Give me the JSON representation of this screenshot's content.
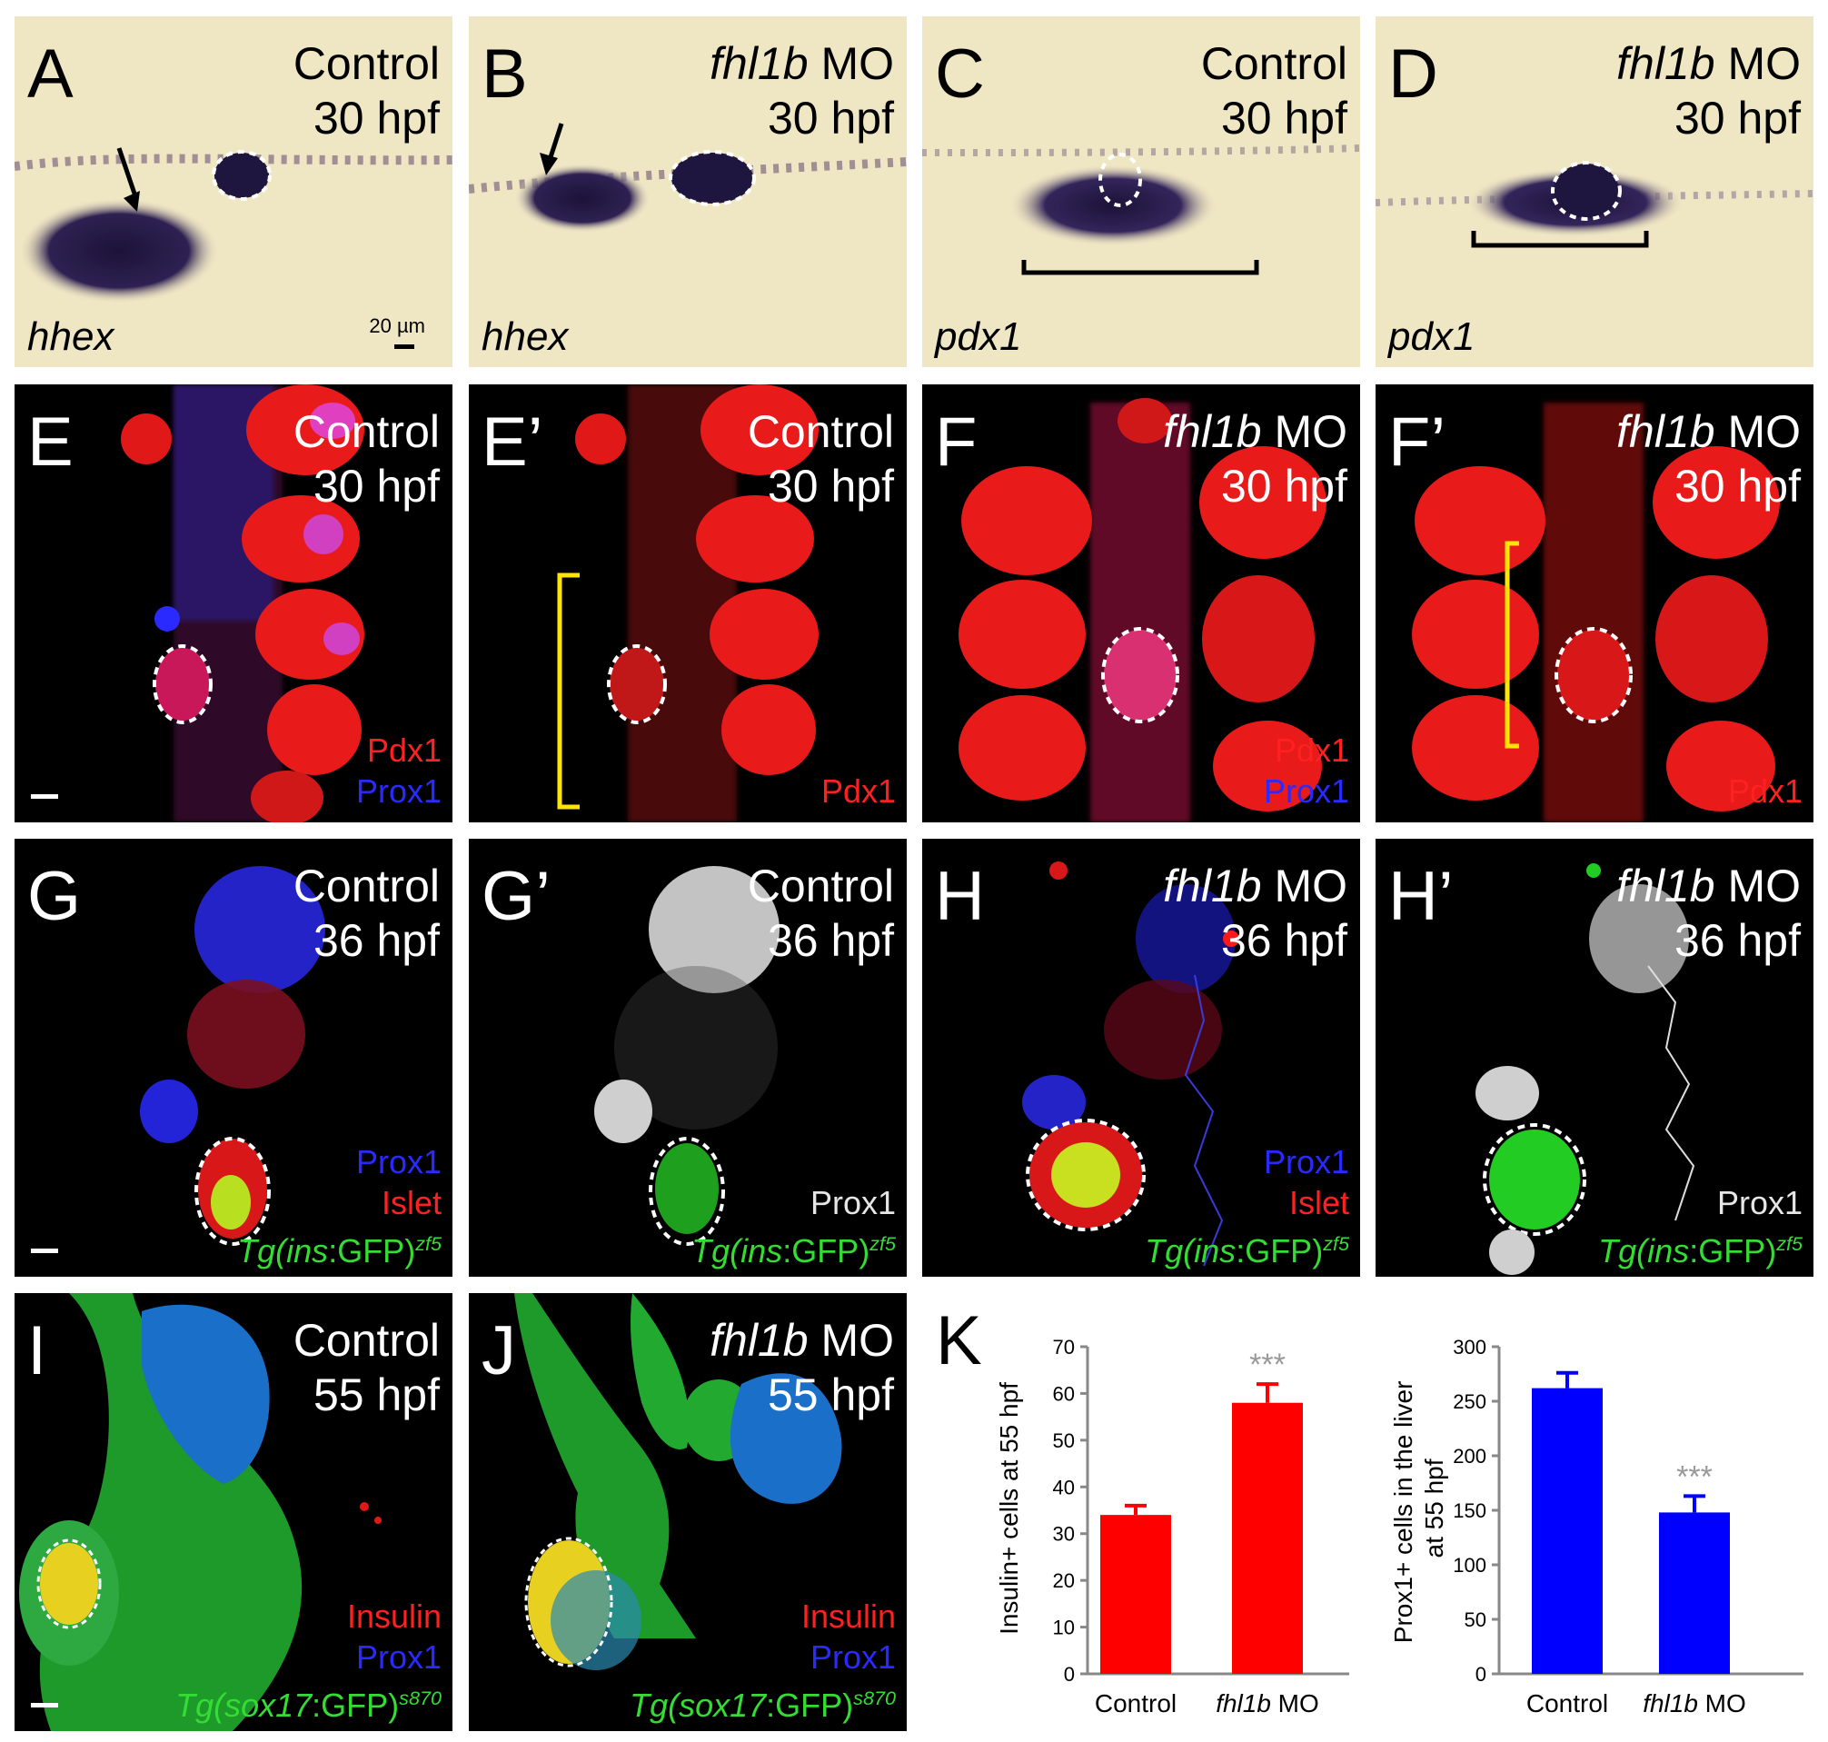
{
  "panels": {
    "A": {
      "letter": "A",
      "cond1": "Control",
      "cond2": "30 hpf",
      "gene": "hhex",
      "scale": "20 µm"
    },
    "B": {
      "letter": "B",
      "cond1_italic": "fhl1b",
      "cond1_rest": " MO",
      "cond2": "30 hpf",
      "gene": "hhex"
    },
    "C": {
      "letter": "C",
      "cond1": "Control",
      "cond2": "30 hpf",
      "gene": "pdx1"
    },
    "D": {
      "letter": "D",
      "cond1_italic": "fhl1b",
      "cond1_rest": " MO",
      "cond2": "30 hpf",
      "gene": "pdx1"
    },
    "E": {
      "letter": "E",
      "cond1": "Control",
      "cond2": "30 hpf",
      "stain1": "Pdx1",
      "stain2": "Prox1"
    },
    "E2": {
      "letter": "E’",
      "cond1": "Control",
      "cond2": "30 hpf",
      "stain1": "Pdx1"
    },
    "F": {
      "letter": "F",
      "cond1_italic": "fhl1b",
      "cond1_rest": " MO",
      "cond2": "30 hpf",
      "stain1": "Pdx1",
      "stain2": "Prox1"
    },
    "F2": {
      "letter": "F’",
      "cond1_italic": "fhl1b",
      "cond1_rest": " MO",
      "cond2": "30 hpf",
      "stain1": "Pdx1"
    },
    "G": {
      "letter": "G",
      "cond1": "Control",
      "cond2": "36 hpf",
      "stain1": "Prox1",
      "stain2": "Islet",
      "tg_pre": "Tg(ins",
      "tg_mid": ":GFP)",
      "tg_sup": "zf5"
    },
    "G2": {
      "letter": "G’",
      "cond1": "Control",
      "cond2": "36 hpf",
      "stain1": "Prox1",
      "tg_pre": "Tg(ins",
      "tg_mid": ":GFP)",
      "tg_sup": "zf5"
    },
    "H": {
      "letter": "H",
      "cond1_italic": "fhl1b",
      "cond1_rest": " MO",
      "cond2": "36 hpf",
      "stain1": "Prox1",
      "stain2": "Islet",
      "tg_pre": "Tg(ins",
      "tg_mid": ":GFP)",
      "tg_sup": "zf5"
    },
    "H2": {
      "letter": "H’",
      "cond1_italic": "fhl1b",
      "cond1_rest": " MO",
      "cond2": "36 hpf",
      "stain1": "Prox1",
      "tg_pre": "Tg(ins",
      "tg_mid": ":GFP)",
      "tg_sup": "zf5"
    },
    "I": {
      "letter": "I",
      "cond1": "Control",
      "cond2": "55 hpf",
      "stain1": "Insulin",
      "stain2": "Prox1",
      "tg_pre": "Tg(sox17",
      "tg_mid": ":GFP)",
      "tg_sup": "s870"
    },
    "J": {
      "letter": "J",
      "cond1_italic": "fhl1b",
      "cond1_rest": " MO",
      "cond2": "55 hpf",
      "stain1": "Insulin",
      "stain2": "Prox1",
      "tg_pre": "Tg(sox17",
      "tg_mid": ":GFP)",
      "tg_sup": "s870"
    },
    "K": {
      "letter": "K"
    }
  },
  "colors": {
    "ish_bg": "#efe6c4",
    "ish_stain": "#25183f",
    "pdx1": "#ff1a1a",
    "prox1": "#2b2bff",
    "gfp": "#22dd22",
    "bar_left": "#ff0000",
    "bar_right": "#0000ff",
    "bracket_yellow": "#ffe600",
    "sig": "#999999"
  },
  "chart_data": [
    {
      "type": "bar",
      "categories": [
        "Control",
        "fhl1b MO"
      ],
      "values": [
        34,
        58
      ],
      "errors": [
        2,
        4
      ],
      "ylabel_line1": "Insulin+ cells at 55 hpf",
      "ylim": [
        0,
        70
      ],
      "yticks": [
        "0",
        "10",
        "20",
        "30",
        "40",
        "50",
        "60",
        "70"
      ],
      "significance": [
        "",
        "***"
      ]
    },
    {
      "type": "bar",
      "categories": [
        "Control",
        "fhl1b MO"
      ],
      "values": [
        262,
        148
      ],
      "errors": [
        14,
        15
      ],
      "ylabel_line1": "Prox1+ cells in the liver",
      "ylabel_line2": "at 55 hpf",
      "ylim": [
        0,
        300
      ],
      "yticks": [
        "0",
        "50",
        "100",
        "150",
        "200",
        "250",
        "300"
      ],
      "significance": [
        "",
        "***"
      ]
    }
  ]
}
